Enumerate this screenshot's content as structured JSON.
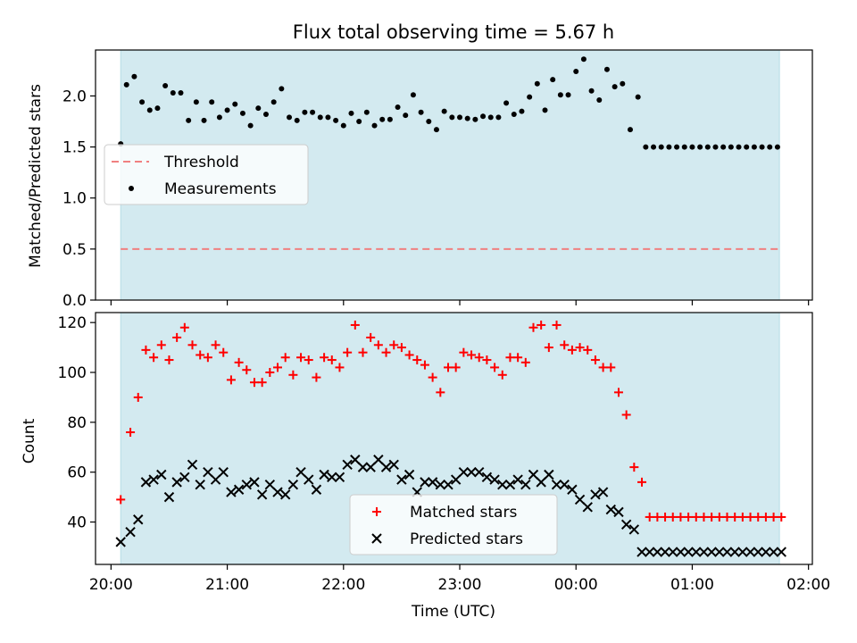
{
  "chart_data": [
    {
      "type": "scatter",
      "title": "Flux total observing time = 5.67 h",
      "xlabel": "",
      "ylabel": "Matched/Predicted stars",
      "xlim": [
        "20:00",
        "02:00"
      ],
      "ylim": [
        0,
        2.45
      ],
      "yticks": [
        "0.0",
        "0.5",
        "1.0",
        "1.5",
        "2.0"
      ],
      "shaded_window": [
        "20:05",
        "01:45"
      ],
      "legend": {
        "placement": "center-left",
        "entries": [
          "Threshold",
          "Measurements"
        ]
      },
      "series": [
        {
          "name": "Threshold",
          "kind": "line",
          "color": "#f08080",
          "x": [
            "20:05",
            "01:45"
          ],
          "values": [
            0.5,
            0.5
          ]
        },
        {
          "name": "Measurements",
          "kind": "dot",
          "color": "#000000",
          "x": [
            "20:05",
            "20:08",
            "20:12",
            "20:16",
            "20:20",
            "20:24",
            "20:28",
            "20:32",
            "20:36",
            "20:40",
            "20:44",
            "20:48",
            "20:52",
            "20:56",
            "21:00",
            "21:04",
            "21:08",
            "21:12",
            "21:16",
            "21:20",
            "21:24",
            "21:28",
            "21:32",
            "21:36",
            "21:40",
            "21:44",
            "21:48",
            "21:52",
            "21:56",
            "22:00",
            "22:04",
            "22:08",
            "22:12",
            "22:16",
            "22:20",
            "22:24",
            "22:28",
            "22:32",
            "22:36",
            "22:40",
            "22:44",
            "22:48",
            "22:52",
            "22:56",
            "23:00",
            "23:04",
            "23:08",
            "23:12",
            "23:16",
            "23:20",
            "23:24",
            "23:28",
            "23:32",
            "23:36",
            "23:40",
            "23:44",
            "23:48",
            "23:52",
            "23:56",
            "00:00",
            "00:04",
            "00:08",
            "00:12",
            "00:16",
            "00:20",
            "00:24",
            "00:28",
            "00:32",
            "00:36",
            "00:40",
            "00:44",
            "00:48",
            "00:52",
            "00:56",
            "01:00",
            "01:04",
            "01:08",
            "01:12",
            "01:16",
            "01:20",
            "01:24",
            "01:28",
            "01:32",
            "01:36",
            "01:40",
            "01:44"
          ],
          "values": [
            1.53,
            2.11,
            2.19,
            1.94,
            1.86,
            1.88,
            2.1,
            2.03,
            2.03,
            1.76,
            1.94,
            1.76,
            1.94,
            1.79,
            1.86,
            1.92,
            1.83,
            1.71,
            1.88,
            1.82,
            1.94,
            2.07,
            1.79,
            1.76,
            1.84,
            1.84,
            1.79,
            1.79,
            1.76,
            1.71,
            1.83,
            1.75,
            1.84,
            1.71,
            1.77,
            1.77,
            1.89,
            1.81,
            2.01,
            1.84,
            1.75,
            1.67,
            1.85,
            1.79,
            1.79,
            1.78,
            1.77,
            1.8,
            1.79,
            1.79,
            1.93,
            1.82,
            1.85,
            1.99,
            2.12,
            1.86,
            2.16,
            2.01,
            2.01,
            2.24,
            2.36,
            2.05,
            1.96,
            2.26,
            2.09,
            2.12,
            1.67,
            1.99,
            1.5,
            1.5,
            1.5,
            1.5,
            1.5,
            1.5,
            1.5,
            1.5,
            1.5,
            1.5,
            1.5,
            1.5,
            1.5,
            1.5,
            1.5,
            1.5,
            1.5,
            1.5
          ]
        }
      ]
    },
    {
      "type": "scatter",
      "title": "",
      "xlabel": "Time (UTC)",
      "ylabel": "Count",
      "xlim": [
        "20:00",
        "02:00"
      ],
      "ylim": [
        23,
        124
      ],
      "xticks": [
        "20:00",
        "21:00",
        "22:00",
        "23:00",
        "00:00",
        "01:00",
        "02:00"
      ],
      "yticks": [
        "40",
        "60",
        "80",
        "100",
        "120"
      ],
      "shaded_window": [
        "20:05",
        "01:45"
      ],
      "legend": {
        "placement": "bottom-center",
        "entries": [
          "Matched stars",
          "Predicted stars"
        ]
      },
      "series": [
        {
          "name": "Matched stars",
          "kind": "plus",
          "color": "#ff0000",
          "x": [
            "20:05",
            "20:10",
            "20:14",
            "20:18",
            "20:22",
            "20:26",
            "20:30",
            "20:34",
            "20:38",
            "20:42",
            "20:46",
            "20:50",
            "20:54",
            "20:58",
            "21:02",
            "21:06",
            "21:10",
            "21:14",
            "21:18",
            "21:22",
            "21:26",
            "21:30",
            "21:34",
            "21:38",
            "21:42",
            "21:46",
            "21:50",
            "21:54",
            "21:58",
            "22:02",
            "22:06",
            "22:10",
            "22:14",
            "22:18",
            "22:22",
            "22:26",
            "22:30",
            "22:34",
            "22:38",
            "22:42",
            "22:46",
            "22:50",
            "22:54",
            "22:58",
            "23:02",
            "23:06",
            "23:10",
            "23:14",
            "23:18",
            "23:22",
            "23:26",
            "23:30",
            "23:34",
            "23:38",
            "23:42",
            "23:46",
            "23:50",
            "23:54",
            "23:58",
            "00:02",
            "00:06",
            "00:10",
            "00:14",
            "00:18",
            "00:22",
            "00:26",
            "00:30",
            "00:34",
            "00:38",
            "00:42",
            "00:46",
            "00:50",
            "00:54",
            "00:58",
            "01:02",
            "01:06",
            "01:10",
            "01:14",
            "01:18",
            "01:22",
            "01:26",
            "01:30",
            "01:34",
            "01:38",
            "01:42",
            "01:46"
          ],
          "values": [
            49,
            76,
            90,
            109,
            106,
            111,
            105,
            114,
            118,
            111,
            107,
            106,
            111,
            108,
            97,
            104,
            101,
            96,
            96,
            100,
            102,
            106,
            99,
            106,
            105,
            98,
            106,
            105,
            102,
            108,
            119,
            108,
            114,
            111,
            108,
            111,
            110,
            107,
            105,
            103,
            98,
            92,
            102,
            102,
            108,
            107,
            106,
            105,
            102,
            99,
            106,
            106,
            104,
            118,
            119,
            110,
            119,
            111,
            109,
            110,
            109,
            105,
            102,
            102,
            92,
            83,
            62,
            56,
            42,
            42,
            42,
            42,
            42,
            42,
            42,
            42,
            42,
            42,
            42,
            42,
            42,
            42,
            42,
            42,
            42,
            42
          ]
        },
        {
          "name": "Predicted stars",
          "kind": "x",
          "color": "#000000",
          "x": [
            "20:05",
            "20:10",
            "20:14",
            "20:18",
            "20:22",
            "20:26",
            "20:30",
            "20:34",
            "20:38",
            "20:42",
            "20:46",
            "20:50",
            "20:54",
            "20:58",
            "21:02",
            "21:06",
            "21:10",
            "21:14",
            "21:18",
            "21:22",
            "21:26",
            "21:30",
            "21:34",
            "21:38",
            "21:42",
            "21:46",
            "21:50",
            "21:54",
            "21:58",
            "22:02",
            "22:06",
            "22:10",
            "22:14",
            "22:18",
            "22:22",
            "22:26",
            "22:30",
            "22:34",
            "22:38",
            "22:42",
            "22:46",
            "22:50",
            "22:54",
            "22:58",
            "23:02",
            "23:06",
            "23:10",
            "23:14",
            "23:18",
            "23:22",
            "23:26",
            "23:30",
            "23:34",
            "23:38",
            "23:42",
            "23:46",
            "23:50",
            "23:54",
            "23:58",
            "00:02",
            "00:06",
            "00:10",
            "00:14",
            "00:18",
            "00:22",
            "00:26",
            "00:30",
            "00:34",
            "00:38",
            "00:42",
            "00:46",
            "00:50",
            "00:54",
            "00:58",
            "01:02",
            "01:06",
            "01:10",
            "01:14",
            "01:18",
            "01:22",
            "01:26",
            "01:30",
            "01:34",
            "01:38",
            "01:42",
            "01:46"
          ],
          "values": [
            32,
            36,
            41,
            56,
            57,
            59,
            50,
            56,
            58,
            63,
            55,
            60,
            57,
            60,
            52,
            53,
            55,
            56,
            51,
            55,
            52,
            51,
            55,
            60,
            57,
            53,
            59,
            58,
            58,
            63,
            65,
            62,
            62,
            65,
            62,
            63,
            57,
            59,
            52,
            56,
            56,
            55,
            55,
            57,
            60,
            60,
            60,
            58,
            57,
            55,
            55,
            57,
            55,
            59,
            56,
            59,
            55,
            55,
            53,
            49,
            46,
            51,
            52,
            45,
            44,
            39,
            37,
            28,
            28,
            28,
            28,
            28,
            28,
            28,
            28,
            28,
            28,
            28,
            28,
            28,
            28,
            28,
            28,
            28,
            28,
            28
          ]
        }
      ]
    }
  ]
}
